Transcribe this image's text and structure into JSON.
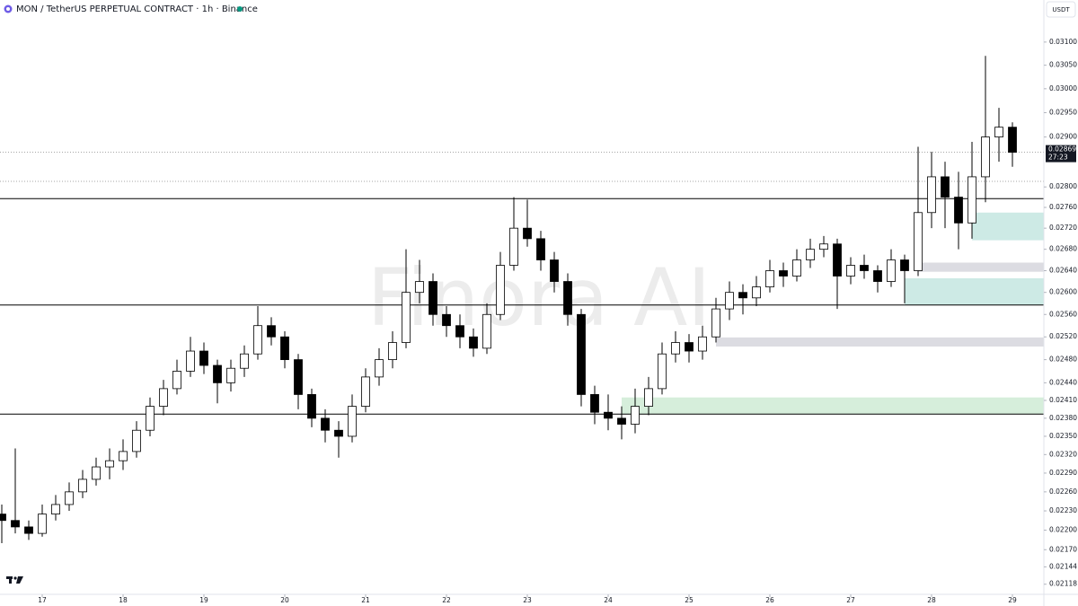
{
  "title": "MON / TetherUS PERPETUAL CONTRACT · 1h · Binance",
  "currency_button": "USDT",
  "watermark": "Finora AI",
  "chart_data": {
    "type": "candlestick",
    "log_scale": true,
    "up_color": "#ffffff",
    "down_color": "#000000",
    "categories": [
      null,
      null,
      null,
      "17",
      null,
      null,
      null,
      null,
      null,
      "18",
      null,
      null,
      null,
      null,
      null,
      "19",
      null,
      null,
      null,
      null,
      null,
      "20",
      null,
      null,
      null,
      null,
      null,
      "21",
      null,
      null,
      null,
      null,
      null,
      "22",
      null,
      null,
      null,
      null,
      null,
      "23",
      null,
      null,
      null,
      null,
      null,
      "24",
      null,
      null,
      null,
      null,
      null,
      "25",
      null,
      null,
      null,
      null,
      null,
      "26",
      null,
      null,
      null,
      null,
      null,
      "27",
      null,
      null,
      null,
      null,
      null,
      "28",
      null,
      null,
      null,
      null,
      null,
      "29"
    ],
    "open": [
      0.02225,
      0.02215,
      0.02205,
      0.02195,
      0.02225,
      0.0224,
      0.0226,
      0.0228,
      0.023,
      0.0231,
      0.02325,
      0.0236,
      0.024,
      0.0243,
      0.0246,
      0.02495,
      0.0247,
      0.0244,
      0.02465,
      0.0249,
      0.0254,
      0.0252,
      0.0248,
      0.0242,
      0.0238,
      0.0236,
      0.0235,
      0.024,
      0.0245,
      0.0248,
      0.0251,
      0.026,
      0.0262,
      0.0256,
      0.0254,
      0.0252,
      0.025,
      0.0256,
      0.0265,
      0.0272,
      0.027,
      0.0266,
      0.0262,
      0.0256,
      0.0242,
      0.0239,
      0.0238,
      0.0237,
      0.024,
      0.0243,
      0.0249,
      0.0251,
      0.02495,
      0.0252,
      0.0257,
      0.026,
      0.0259,
      0.0261,
      0.0264,
      0.0263,
      0.0266,
      0.0268,
      0.0269,
      0.0263,
      0.0265,
      0.0264,
      0.0262,
      0.0266,
      0.0264,
      0.0275,
      0.0282,
      0.0278,
      0.0273,
      0.0282,
      0.029,
      0.0292
    ],
    "high": [
      0.0224,
      0.0233,
      0.02215,
      0.0224,
      0.02255,
      0.02275,
      0.02295,
      0.02315,
      0.0233,
      0.02345,
      0.02375,
      0.02415,
      0.02445,
      0.0248,
      0.0252,
      0.0251,
      0.0248,
      0.0248,
      0.02505,
      0.02575,
      0.02555,
      0.0253,
      0.0249,
      0.0243,
      0.02395,
      0.02375,
      0.0242,
      0.02465,
      0.025,
      0.0253,
      0.0268,
      0.0266,
      0.02635,
      0.02575,
      0.0256,
      0.02535,
      0.0258,
      0.02675,
      0.0278,
      0.02775,
      0.02715,
      0.02675,
      0.02635,
      0.0257,
      0.02435,
      0.0242,
      0.024,
      0.0243,
      0.0245,
      0.0251,
      0.0253,
      0.02525,
      0.0254,
      0.0259,
      0.0262,
      0.02615,
      0.0263,
      0.0266,
      0.02655,
      0.0268,
      0.027,
      0.02705,
      0.027,
      0.02665,
      0.0267,
      0.0265,
      0.0268,
      0.0267,
      0.0288,
      0.0287,
      0.0285,
      0.0283,
      0.0289,
      0.0307,
      0.0296,
      0.0293
    ],
    "low": [
      0.0218,
      0.02195,
      0.02185,
      0.0219,
      0.02215,
      0.0223,
      0.0225,
      0.0227,
      0.0228,
      0.02295,
      0.02315,
      0.0235,
      0.02385,
      0.0242,
      0.0245,
      0.02455,
      0.02405,
      0.02425,
      0.0245,
      0.0248,
      0.02505,
      0.02465,
      0.02395,
      0.02365,
      0.0234,
      0.02315,
      0.0234,
      0.0239,
      0.02435,
      0.02465,
      0.025,
      0.0258,
      0.0254,
      0.0252,
      0.025,
      0.02485,
      0.0249,
      0.0255,
      0.0264,
      0.02685,
      0.0264,
      0.026,
      0.0254,
      0.024,
      0.0237,
      0.0236,
      0.02345,
      0.02355,
      0.02385,
      0.0242,
      0.02475,
      0.02475,
      0.0248,
      0.0251,
      0.0255,
      0.0256,
      0.02575,
      0.026,
      0.0261,
      0.0262,
      0.02645,
      0.02665,
      0.0257,
      0.02615,
      0.02625,
      0.026,
      0.0261,
      0.0258,
      0.0263,
      0.0272,
      0.0272,
      0.0268,
      0.027,
      0.0277,
      0.0285,
      0.0284
    ],
    "close": [
      0.02215,
      0.02205,
      0.02195,
      0.02225,
      0.0224,
      0.0226,
      0.0228,
      0.023,
      0.0231,
      0.02325,
      0.0236,
      0.024,
      0.0243,
      0.0246,
      0.02495,
      0.0247,
      0.0244,
      0.02465,
      0.0249,
      0.0254,
      0.0252,
      0.0248,
      0.0242,
      0.0238,
      0.0236,
      0.0235,
      0.024,
      0.0245,
      0.0248,
      0.0251,
      0.026,
      0.0262,
      0.0256,
      0.0254,
      0.0252,
      0.025,
      0.0256,
      0.0265,
      0.0272,
      0.027,
      0.0266,
      0.0262,
      0.0256,
      0.0242,
      0.0239,
      0.0238,
      0.0237,
      0.024,
      0.0243,
      0.0249,
      0.0251,
      0.02495,
      0.0252,
      0.0257,
      0.026,
      0.0259,
      0.0261,
      0.0264,
      0.0263,
      0.0266,
      0.0268,
      0.0269,
      0.0263,
      0.0265,
      0.0264,
      0.0262,
      0.0266,
      0.0264,
      0.0275,
      0.0282,
      0.0278,
      0.0273,
      0.0282,
      0.029,
      0.0292,
      0.02869
    ],
    "ylim": [
      0.02103,
      0.03193
    ],
    "yticks": [
      {
        "value": 0.031,
        "label": "0.03100"
      },
      {
        "value": 0.0305,
        "label": "0.03050"
      },
      {
        "value": 0.03,
        "label": "0.03000"
      },
      {
        "value": 0.0295,
        "label": "0.02950"
      },
      {
        "value": 0.029,
        "label": "0.02900"
      },
      {
        "value": 0.028,
        "label": "0.02800"
      },
      {
        "value": 0.0276,
        "label": "0.02760"
      },
      {
        "value": 0.0272,
        "label": "0.02720"
      },
      {
        "value": 0.0268,
        "label": "0.02680"
      },
      {
        "value": 0.0264,
        "label": "0.02640"
      },
      {
        "value": 0.026,
        "label": "0.02600"
      },
      {
        "value": 0.0256,
        "label": "0.02560"
      },
      {
        "value": 0.0252,
        "label": "0.02520"
      },
      {
        "value": 0.0248,
        "label": "0.02480"
      },
      {
        "value": 0.0244,
        "label": "0.02440"
      },
      {
        "value": 0.0241,
        "label": "0.02410"
      },
      {
        "value": 0.0238,
        "label": "0.02380"
      },
      {
        "value": 0.0235,
        "label": "0.02350"
      },
      {
        "value": 0.0232,
        "label": "0.02320"
      },
      {
        "value": 0.0229,
        "label": "0.02290"
      },
      {
        "value": 0.0226,
        "label": "0.02260"
      },
      {
        "value": 0.0223,
        "label": "0.02230"
      },
      {
        "value": 0.022,
        "label": "0.02200"
      },
      {
        "value": 0.0217,
        "label": "0.02170"
      },
      {
        "value": 0.02144,
        "label": "0.02144"
      },
      {
        "value": 0.02118,
        "label": "0.02118"
      }
    ],
    "levels": [
      0.02777,
      0.02577,
      0.02387
    ],
    "level_color": "#000000",
    "dotted_levels": [
      0.02869,
      0.02811
    ],
    "zones": [
      {
        "color": "#d6eedb",
        "ylim": [
          0.02387,
          0.02415
        ],
        "start": 46
      },
      {
        "color": "#cdeae5",
        "ylim": [
          0.02697,
          0.0275
        ],
        "start": 72
      },
      {
        "color": "#cdeae5",
        "ylim": [
          0.02577,
          0.02626
        ],
        "start": 67
      },
      {
        "color": "#dcdce2",
        "ylim": [
          0.02638,
          0.02655
        ],
        "start": 68
      },
      {
        "color": "#dcdce2",
        "ylim": [
          0.02503,
          0.02519
        ],
        "start": 53
      }
    ],
    "last_price": 0.02869,
    "countdown": "27:23"
  }
}
